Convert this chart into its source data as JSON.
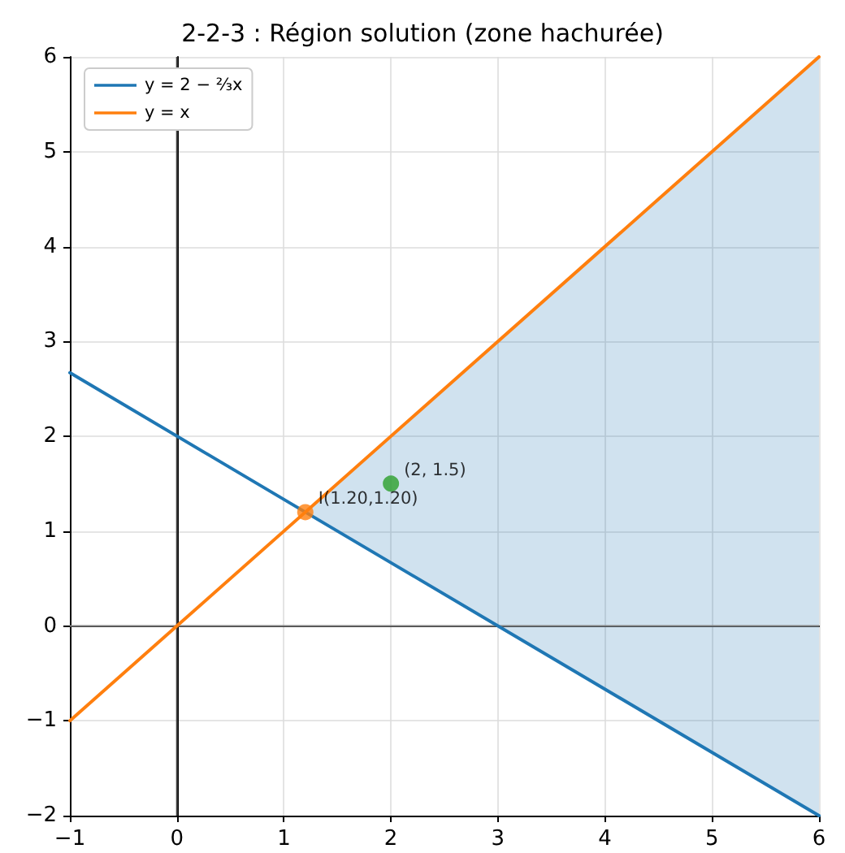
{
  "chart_data": {
    "type": "line",
    "title": "2-2-3 : Région solution (zone hachurée)",
    "xlim": [
      -1,
      6
    ],
    "ylim": [
      -2,
      6
    ],
    "xticks": [
      -1,
      0,
      1,
      2,
      3,
      4,
      5,
      6
    ],
    "yticks": [
      -2,
      -1,
      0,
      1,
      2,
      3,
      4,
      5,
      6
    ],
    "grid": true,
    "legend": "top left",
    "marker": "none",
    "series": [
      {
        "name": "y = 2 − ⅔x",
        "color": "#1f77b4",
        "x": [
          -1,
          1.2,
          6
        ],
        "values": [
          2.67,
          1.2,
          -2
        ],
        "lower": [
          null,
          1.2,
          -2
        ],
        "upper": [
          null,
          1.2,
          6
        ]
      },
      {
        "name": "y = x",
        "color": "#ff7f0e",
        "x": [
          -1,
          6
        ],
        "values": [
          -1,
          6
        ]
      },
      {
        "type": "scatter",
        "marker": "circle",
        "color": "#ff7f0e",
        "x": [
          1.2
        ],
        "values": [
          1.2
        ]
      },
      {
        "type": "scatter",
        "marker": "circle",
        "color": "#2ca02c",
        "x": [
          2
        ],
        "values": [
          1.5
        ]
      }
    ],
    "ref_lines": [
      {
        "axis": "x",
        "value": 0,
        "color": "#444444"
      },
      {
        "axis": "y",
        "value": 0,
        "color": "#808080"
      }
    ],
    "annotations": [
      {
        "text": "I(1.20,1.20)",
        "x": 1.2,
        "y": 1.2
      },
      {
        "text": "(2, 1.5)",
        "x": 2,
        "y": 1.5
      }
    ]
  }
}
